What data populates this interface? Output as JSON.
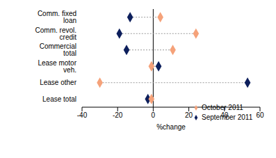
{
  "chart_data": {
    "type": "dot",
    "orientation": "horizontal",
    "categories": [
      "Comm. fixed loan",
      "Comm. revol. credit",
      "Commercial total",
      "Lease motor veh.",
      "Lease other",
      "Lease total"
    ],
    "series": [
      {
        "name": "September 2011",
        "color": "#0d1f5c",
        "marker": "diamond",
        "values": [
          -13,
          -19,
          -15,
          3,
          53,
          -3
        ]
      },
      {
        "name": "October 2011",
        "color": "#f5a27a",
        "marker": "diamond",
        "values": [
          4,
          24,
          11,
          -1,
          -30,
          -1
        ]
      }
    ],
    "xlabel": "%change",
    "xlim": [
      -40,
      60
    ],
    "xticks": [
      -40,
      -20,
      0,
      20,
      40,
      60
    ],
    "legend": "lower right",
    "line_style": "dotted"
  }
}
